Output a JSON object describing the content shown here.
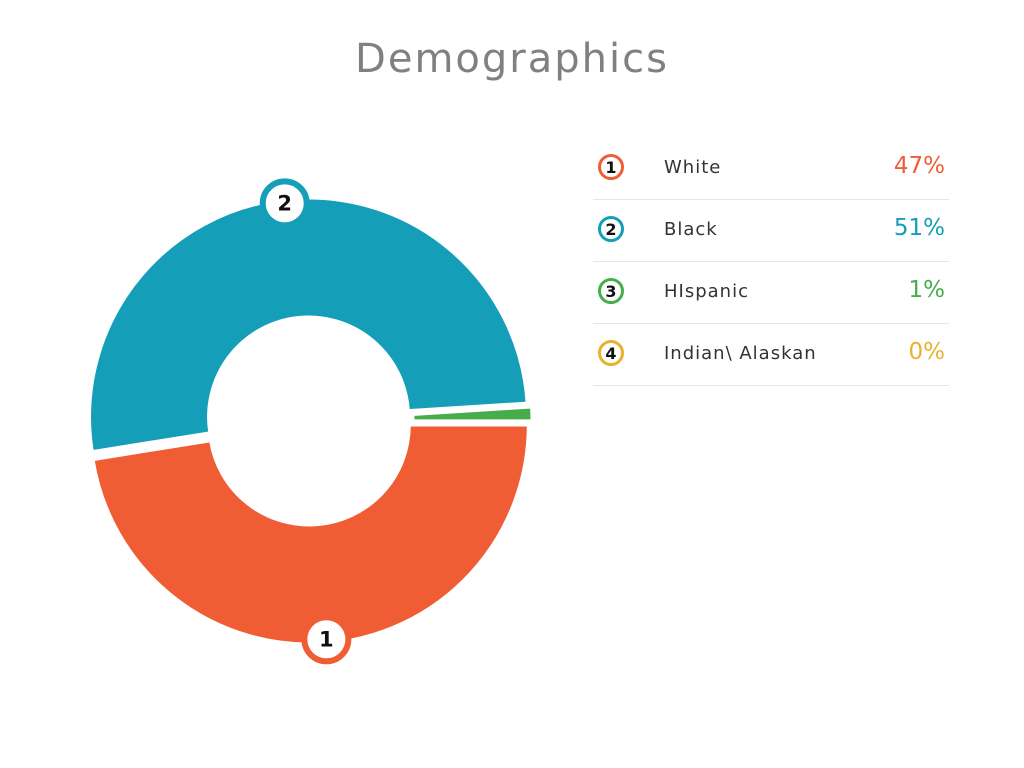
{
  "chart_data": {
    "type": "pie",
    "title": "Demographics",
    "legend_placement": "right",
    "slices": [
      {
        "index": "1",
        "label": "White",
        "value": 47,
        "display": "47%",
        "color": "#f05d35"
      },
      {
        "index": "2",
        "label": "Black",
        "value": 51,
        "display": "51%",
        "color": "#159eb8"
      },
      {
        "index": "3",
        "label": "HIspanic",
        "value": 1,
        "display": "1%",
        "color": "#46ac4c"
      },
      {
        "index": "4",
        "label": "Indian\\ Alaskan",
        "value": 0,
        "display": "0%",
        "color": "#e9b22d"
      }
    ]
  }
}
